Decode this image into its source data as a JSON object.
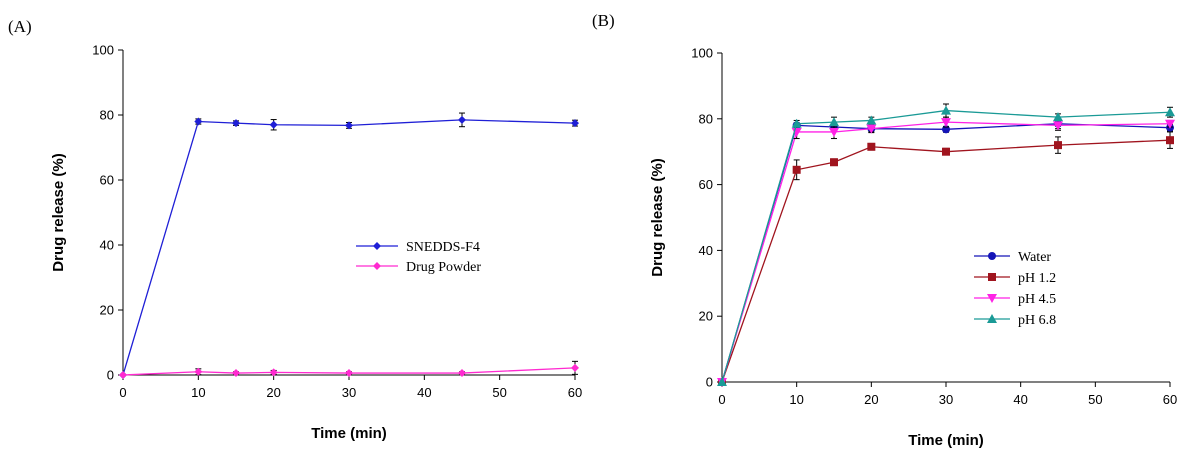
{
  "chart_data": [
    {
      "panel": "(A)",
      "type": "line",
      "xlabel": "Time (min)",
      "ylabel": "Drug release (%)",
      "xlim": [
        0,
        60
      ],
      "ylim": [
        0,
        100
      ],
      "xticks": [
        "0",
        "10",
        "20",
        "30",
        "40",
        "50",
        "60"
      ],
      "yticks": [
        "0",
        "20",
        "40",
        "60",
        "80",
        "100"
      ],
      "grid": false,
      "legend": "center-right",
      "x": [
        0,
        10,
        15,
        20,
        30,
        45,
        60
      ],
      "series": [
        {
          "name": "SNEDDS-F4",
          "color": "#1f1fd6",
          "marker": "diamond",
          "values": [
            0,
            78,
            77.5,
            77,
            76.8,
            78.5,
            77.5
          ],
          "errors": [
            0,
            0.8,
            0.7,
            1.6,
            0.9,
            2.1,
            0.9
          ]
        },
        {
          "name": "Drug Powder",
          "color": "#ff2ad0",
          "marker": "diamond",
          "values": [
            0,
            1,
            0.6,
            0.8,
            0.6,
            0.6,
            2.2
          ],
          "errors": [
            0,
            0.9,
            0.4,
            0.6,
            0.4,
            0.4,
            2.0
          ]
        }
      ]
    },
    {
      "panel": "(B)",
      "type": "line",
      "xlabel": "Time (min)",
      "ylabel": "Drug release (%)",
      "xlim": [
        0,
        60
      ],
      "ylim": [
        0,
        100
      ],
      "xticks": [
        "0",
        "10",
        "20",
        "30",
        "40",
        "50",
        "60"
      ],
      "yticks": [
        "0",
        "20",
        "40",
        "60",
        "80",
        "100"
      ],
      "grid": false,
      "legend": "bottom-right",
      "x": [
        0,
        10,
        15,
        20,
        30,
        45,
        60
      ],
      "series": [
        {
          "name": "Water",
          "color": "#1414b8",
          "marker": "circle",
          "values": [
            0,
            78,
            77.5,
            77,
            76.8,
            78.5,
            77.3
          ],
          "errors": [
            0,
            0.8,
            0.7,
            1.2,
            0.9,
            1.5,
            1.0
          ]
        },
        {
          "name": "pH 1.2",
          "color": "#a0141e",
          "marker": "square",
          "values": [
            0,
            64.5,
            66.8,
            71.5,
            70,
            72,
            73.5
          ],
          "errors": [
            0,
            3.0,
            1.0,
            1.0,
            1.0,
            2.5,
            2.5
          ]
        },
        {
          "name": "pH 4.5",
          "color": "#ff22e6",
          "marker": "triangle-down",
          "values": [
            0,
            76,
            76,
            77,
            79,
            78,
            78.5
          ],
          "errors": [
            0,
            2.0,
            2.0,
            1.0,
            1.5,
            1.5,
            1.0
          ]
        },
        {
          "name": "pH 6.8",
          "color": "#1a9a96",
          "marker": "triangle-up",
          "values": [
            0,
            78.5,
            79,
            79.5,
            82.5,
            80.5,
            82
          ],
          "errors": [
            0,
            1.0,
            1.5,
            1.0,
            2.0,
            1.0,
            1.5
          ]
        }
      ]
    }
  ]
}
